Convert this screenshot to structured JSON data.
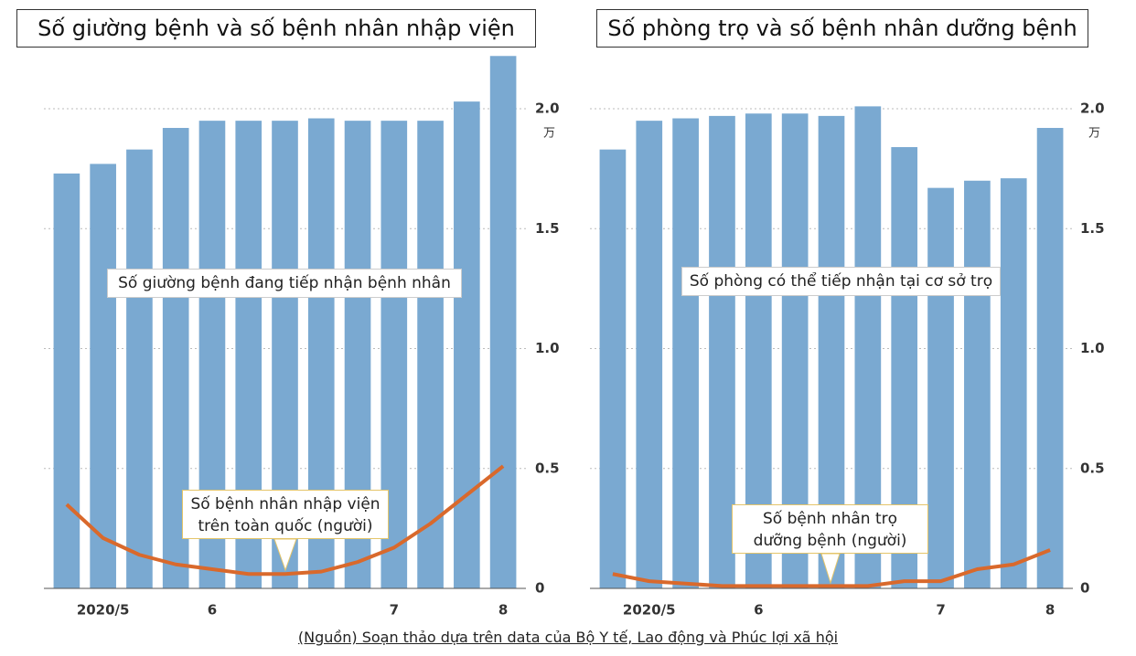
{
  "chart_data": [
    {
      "type": "bar",
      "title": "Số giường bệnh và số bệnh nhân nhập viện",
      "y_unit": "万",
      "categories": [
        null,
        "2020/5",
        null,
        null,
        "6",
        null,
        null,
        null,
        null,
        "7",
        null,
        null,
        "8"
      ],
      "series": [
        {
          "name": "Số giường bệnh đang tiếp nhận bệnh nhân",
          "type": "bar",
          "color": "#7aa9d1",
          "values": [
            1.73,
            1.77,
            1.83,
            1.92,
            1.95,
            1.95,
            1.95,
            1.96,
            1.95,
            1.95,
            1.95,
            2.03,
            2.22
          ]
        },
        {
          "name": "Số bệnh nhân nhập viện\ntrên toàn quốc (người)",
          "type": "line",
          "color": "#d9692c",
          "values": [
            0.35,
            0.21,
            0.14,
            0.1,
            0.08,
            0.06,
            0.06,
            0.07,
            0.11,
            0.17,
            0.27,
            0.39,
            0.51
          ]
        }
      ],
      "ylim": [
        0,
        2.25
      ],
      "yticks": [
        0,
        0.5,
        {
          "value": 1,
          "label": "1.0"
        },
        1.5,
        {
          "value": 2,
          "label": "2.0"
        }
      ],
      "grid": true
    },
    {
      "type": "bar",
      "title": "Số phòng trọ và số bệnh nhân dưỡng bệnh",
      "y_unit": "万",
      "categories": [
        null,
        "2020/5",
        null,
        null,
        "6",
        null,
        null,
        null,
        null,
        "7",
        null,
        null,
        "8"
      ],
      "series": [
        {
          "name": "Số phòng có thể tiếp nhận tại cơ sở trọ",
          "type": "bar",
          "color": "#7aa9d1",
          "values": [
            1.83,
            1.95,
            1.96,
            1.97,
            1.98,
            1.98,
            1.97,
            2.01,
            1.84,
            1.67,
            1.7,
            1.71,
            1.92
          ]
        },
        {
          "name": "Số bệnh nhân trọ\ndưỡng bệnh (người)",
          "type": "line",
          "color": "#d9692c",
          "values": [
            0.06,
            0.03,
            0.02,
            0.01,
            0.01,
            0.01,
            0.01,
            0.01,
            0.03,
            0.03,
            0.08,
            0.1,
            0.16
          ]
        }
      ],
      "ylim": [
        0,
        2.25
      ],
      "yticks": [
        0,
        0.5,
        {
          "value": 1,
          "label": "1.0"
        },
        1.5,
        {
          "value": 2,
          "label": "2.0"
        }
      ],
      "grid": true
    }
  ],
  "source": "(Nguồn) Soạn thảo dựa trên data của Bộ Y tế, Lao động và Phúc lợi xã hội"
}
